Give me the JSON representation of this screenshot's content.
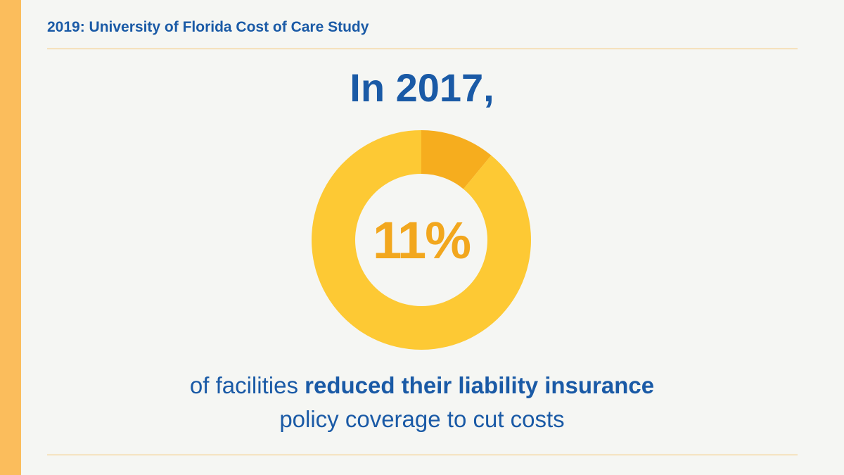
{
  "header": {
    "title": "2019: University of Florida Cost of Care Study"
  },
  "headline": "In 2017,",
  "caption": {
    "prefix": "of facilities",
    "emphasis": "reduced their liability insurance",
    "line2": "policy coverage to cut costs"
  },
  "colors": {
    "accent_bar": "#fbbd5c",
    "text_blue": "#1a5aa6",
    "donut_main": "#fdc934",
    "donut_highlight": "#f6ad1e",
    "percent_text": "#f2a71e",
    "background": "#f5f6f3"
  },
  "chart_data": {
    "type": "pie",
    "variant": "donut",
    "center_label": "11%",
    "slices": [
      {
        "value": 11,
        "color": "#f6ad1e"
      },
      {
        "value": 89,
        "color": "#fdc934"
      }
    ]
  }
}
